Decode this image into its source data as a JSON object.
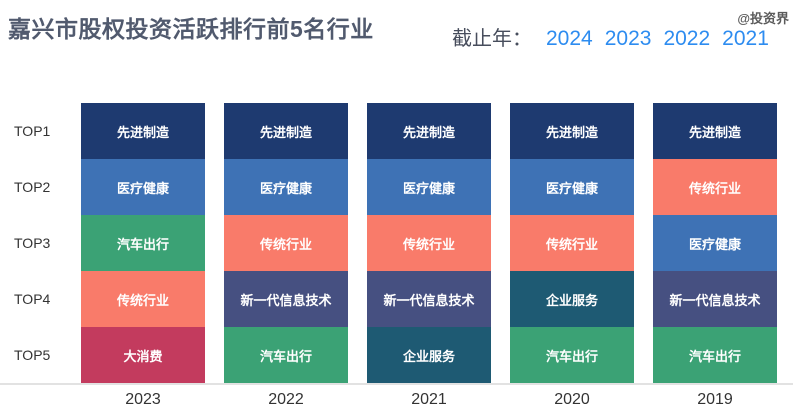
{
  "header": {
    "title": "嘉兴市股权投资活跃排行前5名行业",
    "filter_label": "截止年：",
    "year_options": [
      "2024",
      "2023",
      "2022",
      "2021"
    ],
    "watermark": "@投资界"
  },
  "colors": {
    "year_link": "#2d8cf0",
    "title_text": "#515a6e",
    "axis_line": "#e2e2e2",
    "label_text": "#333333"
  },
  "chart_data": {
    "type": "table",
    "title": "嘉兴市股权投资活跃排行前5名行业",
    "rank_labels": [
      "TOP1",
      "TOP2",
      "TOP3",
      "TOP4",
      "TOP5"
    ],
    "categories": [
      "2023",
      "2022",
      "2021",
      "2020",
      "2019"
    ],
    "columns": [
      {
        "year": "2023",
        "industries": [
          "先进制造",
          "医疗健康",
          "汽车出行",
          "传统行业",
          "大消费"
        ]
      },
      {
        "year": "2022",
        "industries": [
          "先进制造",
          "医疗健康",
          "传统行业",
          "新一代信息技术",
          "汽车出行"
        ]
      },
      {
        "year": "2021",
        "industries": [
          "先进制造",
          "医疗健康",
          "传统行业",
          "新一代信息技术",
          "企业服务"
        ]
      },
      {
        "year": "2020",
        "industries": [
          "先进制造",
          "医疗健康",
          "传统行业",
          "企业服务",
          "汽车出行"
        ]
      },
      {
        "year": "2019",
        "industries": [
          "先进制造",
          "传统行业",
          "医疗健康",
          "新一代信息技术",
          "汽车出行"
        ]
      }
    ],
    "industry_colors": {
      "先进制造": "#1e3a70",
      "医疗健康": "#3e72b5",
      "汽车出行": "#3ba275",
      "传统行业": "#f97b6a",
      "大消费": "#c33b5e",
      "新一代信息技术": "#465081",
      "企业服务": "#1e5a73"
    },
    "legend_position": "none",
    "grid": false
  }
}
